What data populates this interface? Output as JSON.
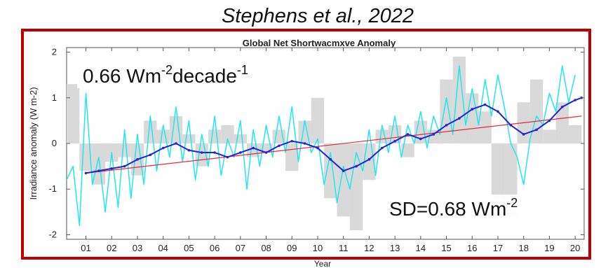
{
  "chart_data": {
    "type": "line",
    "caption": "Stephens et al., 2022",
    "title": "Global Net Shortwacmxve Anomaly",
    "ylabel": "Irradiance anomaly (W m-2)",
    "xlabel": "Year",
    "annotations": [
      {
        "parts": [
          "0.66 Wm",
          "-2",
          "decade",
          "-1"
        ]
      },
      {
        "parts": [
          "SD=0.68 Wm",
          "-2"
        ]
      }
    ],
    "xlim": [
      2000.25,
      2020.35
    ],
    "ylim": [
      -2.1,
      2.1
    ],
    "yticks": [
      -2,
      -1,
      0,
      1,
      2
    ],
    "xticks": [
      {
        "value": 2001,
        "label": "01"
      },
      {
        "value": 2002,
        "label": "02"
      },
      {
        "value": 2003,
        "label": "03"
      },
      {
        "value": 2004,
        "label": "04"
      },
      {
        "value": 2005,
        "label": "05"
      },
      {
        "value": 2006,
        "label": "06"
      },
      {
        "value": 2007,
        "label": "07"
      },
      {
        "value": 2008,
        "label": "08"
      },
      {
        "value": 2009,
        "label": "09"
      },
      {
        "value": 2010,
        "label": "10"
      },
      {
        "value": 2011,
        "label": "11"
      },
      {
        "value": 2012,
        "label": "12"
      },
      {
        "value": 2013,
        "label": "13"
      },
      {
        "value": 2014,
        "label": "14"
      },
      {
        "value": 2015,
        "label": "15"
      },
      {
        "value": 2016,
        "label": "16"
      },
      {
        "value": 2017,
        "label": "17"
      },
      {
        "value": 2018,
        "label": "18"
      },
      {
        "value": 2019,
        "label": "19"
      },
      {
        "value": 2020,
        "label": "20"
      }
    ],
    "series": [
      {
        "kind": "bar",
        "color": "#d9d9d9",
        "x": [
          2000.5,
          2001,
          2001.5,
          2002,
          2002.5,
          2003,
          2003.5,
          2004,
          2004.5,
          2005,
          2005.5,
          2006,
          2006.5,
          2007,
          2007.5,
          2008,
          2008.5,
          2009,
          2009.5,
          2010,
          2010.5,
          2011,
          2011.5,
          2012,
          2012.5,
          2013,
          2013.5,
          2014,
          2014.5,
          2015,
          2015.5,
          2016,
          2016.5,
          2017,
          2017.5,
          2018,
          2018.5,
          2019,
          2019.5,
          2020
        ],
        "values": [
          1.3,
          -0.6,
          -0.9,
          -0.4,
          -0.3,
          -0.7,
          0.5,
          0.3,
          0.6,
          0.2,
          -0.5,
          0.3,
          0.4,
          0.2,
          -0.3,
          -0.2,
          0.3,
          -0.6,
          0.5,
          1.0,
          -1.2,
          -1.6,
          -1.9,
          -0.8,
          0.3,
          0.4,
          -0.3,
          0.5,
          0.3,
          1.4,
          1.9,
          1.1,
          0.7,
          -1.2,
          -1.6,
          0.9,
          1.4,
          0.3,
          0.9,
          0.4
        ]
      },
      {
        "kind": "line",
        "color": "#22e6f0",
        "width": 1.5,
        "x": [
          2000.25,
          2000.5,
          2000.75,
          2001,
          2001.25,
          2001.5,
          2001.75,
          2002,
          2002.25,
          2002.5,
          2002.75,
          2003,
          2003.25,
          2003.5,
          2003.75,
          2004,
          2004.25,
          2004.5,
          2004.75,
          2005,
          2005.25,
          2005.5,
          2005.75,
          2006,
          2006.25,
          2006.5,
          2006.75,
          2007,
          2007.25,
          2007.5,
          2007.75,
          2008,
          2008.25,
          2008.5,
          2008.75,
          2009,
          2009.25,
          2009.5,
          2009.75,
          2010,
          2010.25,
          2010.5,
          2010.75,
          2011,
          2011.25,
          2011.5,
          2011.75,
          2012,
          2012.25,
          2012.5,
          2012.75,
          2013,
          2013.25,
          2013.5,
          2013.75,
          2014,
          2014.25,
          2014.5,
          2014.75,
          2015,
          2015.25,
          2015.5,
          2015.75,
          2016,
          2016.25,
          2016.5,
          2016.75,
          2017,
          2017.25,
          2017.5,
          2017.75,
          2018,
          2018.25,
          2018.5,
          2018.75,
          2019,
          2019.25,
          2019.5,
          2019.75,
          2020
        ],
        "values": [
          -0.8,
          -0.5,
          -1.8,
          1.1,
          -0.9,
          -0.3,
          -1.5,
          -0.2,
          -1.4,
          0.3,
          -1.2,
          0.2,
          -0.9,
          0.6,
          -0.6,
          0.4,
          -0.3,
          0.8,
          -0.4,
          0.5,
          -0.8,
          0.2,
          -0.5,
          0.6,
          -0.7,
          0.1,
          -0.3,
          0.5,
          -1.0,
          0.3,
          -0.5,
          0.4,
          -0.3,
          0.6,
          -0.2,
          0.8,
          -0.4,
          0.5,
          -0.2,
          0.1,
          -0.9,
          -0.2,
          -1.3,
          -0.5,
          -1.0,
          -0.2,
          -0.6,
          0.3,
          -0.7,
          0.4,
          -0.2,
          0.6,
          -0.3,
          0.4,
          0.0,
          0.7,
          -0.1,
          0.6,
          0.2,
          1.0,
          0.2,
          1.7,
          0.4,
          1.2,
          0.4,
          1.4,
          0.6,
          1.5,
          0.8,
          0.0,
          -0.3,
          -0.9,
          0.1,
          0.6,
          0.4,
          1.1,
          0.7,
          1.7,
          0.9,
          1.5
        ]
      },
      {
        "kind": "line",
        "color": "#e8283a",
        "width": 1.2,
        "x": [
          2001,
          2020.25
        ],
        "values": [
          -0.65,
          0.6
        ]
      },
      {
        "kind": "line",
        "color": "#2323d6",
        "width": 2,
        "markers": true,
        "x": [
          2001,
          2001.5,
          2002,
          2002.5,
          2003,
          2003.5,
          2004,
          2004.5,
          2005,
          2005.5,
          2006,
          2006.5,
          2007,
          2007.5,
          2008,
          2008.5,
          2009,
          2009.5,
          2010,
          2010.5,
          2011,
          2011.5,
          2012,
          2012.5,
          2013,
          2013.5,
          2014,
          2014.5,
          2015,
          2015.5,
          2016,
          2016.5,
          2017,
          2017.5,
          2018,
          2018.5,
          2019,
          2019.5,
          2020,
          2020.25
        ],
        "values": [
          -0.65,
          -0.6,
          -0.55,
          -0.5,
          -0.35,
          -0.25,
          -0.1,
          0.0,
          -0.15,
          -0.2,
          -0.2,
          -0.3,
          -0.2,
          -0.1,
          -0.2,
          -0.05,
          0.05,
          0.0,
          -0.1,
          -0.35,
          -0.6,
          -0.5,
          -0.35,
          -0.1,
          0.05,
          0.2,
          0.1,
          0.2,
          0.4,
          0.55,
          0.75,
          0.85,
          0.7,
          0.4,
          0.2,
          0.3,
          0.5,
          0.8,
          0.95,
          1.0
        ]
      }
    ]
  }
}
